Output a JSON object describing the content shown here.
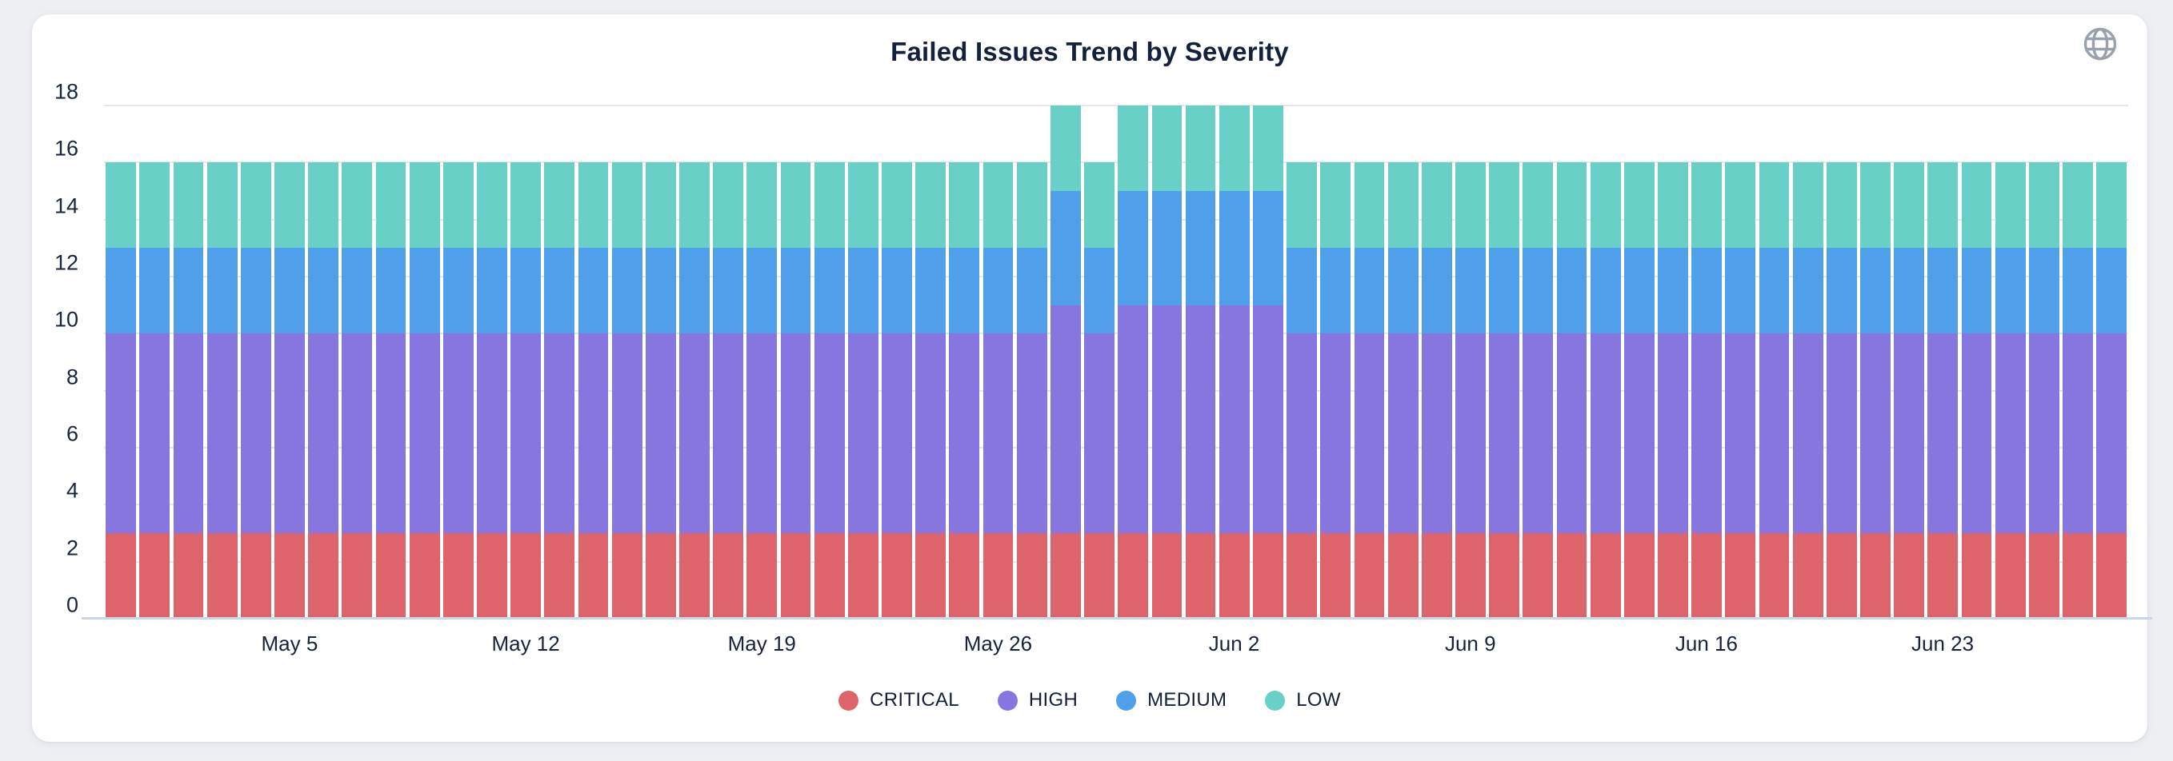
{
  "chart": {
    "title": "Failed Issues Trend by Severity"
  },
  "toolbar": {
    "globe_icon": "globe-icon"
  },
  "chart_data": {
    "type": "bar",
    "stacked": true,
    "title": "Failed Issues Trend by Severity",
    "xlabel": "",
    "ylabel": "",
    "ylim": [
      0,
      18
    ],
    "y_ticks": [
      0,
      2,
      4,
      6,
      8,
      10,
      12,
      14,
      16,
      18
    ],
    "grid": true,
    "legend_position": "bottom",
    "categories": [
      "Apr 30",
      "May 1",
      "May 2",
      "May 3",
      "May 4",
      "May 5",
      "May 6",
      "May 7",
      "May 8",
      "May 9",
      "May 10",
      "May 11",
      "May 12",
      "May 13",
      "May 14",
      "May 15",
      "May 16",
      "May 17",
      "May 18",
      "May 19",
      "May 20",
      "May 21",
      "May 22",
      "May 23",
      "May 24",
      "May 25",
      "May 26",
      "May 27",
      "May 28",
      "May 29",
      "May 30",
      "May 31",
      "Jun 1",
      "Jun 2",
      "Jun 3",
      "Jun 4",
      "Jun 5",
      "Jun 6",
      "Jun 7",
      "Jun 8",
      "Jun 9",
      "Jun 10",
      "Jun 11",
      "Jun 12",
      "Jun 13",
      "Jun 14",
      "Jun 15",
      "Jun 16",
      "Jun 17",
      "Jun 18",
      "Jun 19",
      "Jun 20",
      "Jun 21",
      "Jun 22",
      "Jun 23",
      "Jun 24",
      "Jun 25",
      "Jun 26",
      "Jun 27",
      "Jun 28"
    ],
    "x_tick_labels": [
      "May 5",
      "May 12",
      "May 19",
      "May 26",
      "Jun 2",
      "Jun 9",
      "Jun 16",
      "Jun 23"
    ],
    "x_tick_indices": [
      5,
      12,
      19,
      26,
      33,
      40,
      47,
      54
    ],
    "series": [
      {
        "name": "CRITICAL",
        "color": "#dd646a",
        "values": [
          3,
          3,
          3,
          3,
          3,
          3,
          3,
          3,
          3,
          3,
          3,
          3,
          3,
          3,
          3,
          3,
          3,
          3,
          3,
          3,
          3,
          3,
          3,
          3,
          3,
          3,
          3,
          3,
          3,
          3,
          3,
          3,
          3,
          3,
          3,
          3,
          3,
          3,
          3,
          3,
          3,
          3,
          3,
          3,
          3,
          3,
          3,
          3,
          3,
          3,
          3,
          3,
          3,
          3,
          3,
          3,
          3,
          3,
          3,
          3
        ]
      },
      {
        "name": "HIGH",
        "color": "#8876e0",
        "values": [
          7,
          7,
          7,
          7,
          7,
          7,
          7,
          7,
          7,
          7,
          7,
          7,
          7,
          7,
          7,
          7,
          7,
          7,
          7,
          7,
          7,
          7,
          7,
          7,
          7,
          7,
          7,
          7,
          8,
          7,
          8,
          8,
          8,
          8,
          8,
          7,
          7,
          7,
          7,
          7,
          7,
          7,
          7,
          7,
          7,
          7,
          7,
          7,
          7,
          7,
          7,
          7,
          7,
          7,
          7,
          7,
          7,
          7,
          7,
          7
        ]
      },
      {
        "name": "MEDIUM",
        "color": "#509feb",
        "values": [
          3,
          3,
          3,
          3,
          3,
          3,
          3,
          3,
          3,
          3,
          3,
          3,
          3,
          3,
          3,
          3,
          3,
          3,
          3,
          3,
          3,
          3,
          3,
          3,
          3,
          3,
          3,
          3,
          4,
          3,
          4,
          4,
          4,
          4,
          4,
          3,
          3,
          3,
          3,
          3,
          3,
          3,
          3,
          3,
          3,
          3,
          3,
          3,
          3,
          3,
          3,
          3,
          3,
          3,
          3,
          3,
          3,
          3,
          3,
          3
        ]
      },
      {
        "name": "LOW",
        "color": "#68d0c6",
        "values": [
          3,
          3,
          3,
          3,
          3,
          3,
          3,
          3,
          3,
          3,
          3,
          3,
          3,
          3,
          3,
          3,
          3,
          3,
          3,
          3,
          3,
          3,
          3,
          3,
          3,
          3,
          3,
          3,
          3,
          3,
          3,
          3,
          3,
          3,
          3,
          3,
          3,
          3,
          3,
          3,
          3,
          3,
          3,
          3,
          3,
          3,
          3,
          3,
          3,
          3,
          3,
          3,
          3,
          3,
          3,
          3,
          3,
          3,
          3,
          3
        ]
      }
    ]
  }
}
